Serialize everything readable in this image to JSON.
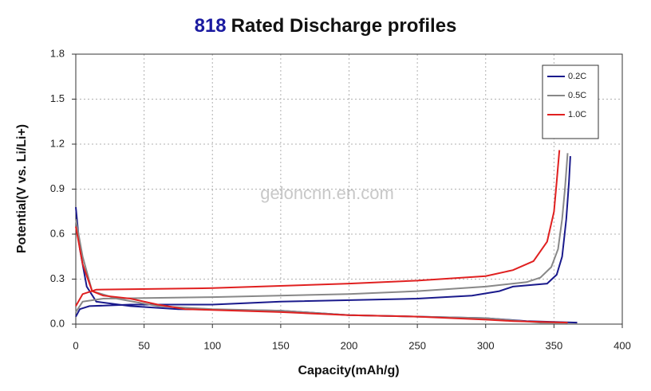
{
  "chart_data": {
    "type": "line",
    "title_prefix": "818",
    "title": "Rated Discharge profiles",
    "watermark": "geloncnn.en.com",
    "x_label": "Capacity(mAh/g)",
    "y_label": "Potential(V vs. Li/Li+)",
    "xlim": [
      0,
      400
    ],
    "xticks": [
      0,
      50,
      100,
      150,
      200,
      250,
      300,
      350,
      400
    ],
    "ylim": [
      0,
      1.8
    ],
    "yticks": [
      {
        "value": 0,
        "label": "0.0"
      },
      0.3,
      0.6,
      0.9,
      1.2,
      1.5,
      1.8
    ],
    "grid": true,
    "legend": "top-right",
    "series": [
      {
        "name": "0.2C",
        "color": "#1a1a8c",
        "x": [
          0,
          3,
          10,
          40,
          100,
          150,
          250,
          290,
          310,
          320,
          345,
          352,
          356,
          359,
          361,
          362,
          null,
          0,
          3,
          8,
          15,
          40,
          75,
          150,
          200,
          300,
          330,
          367
        ],
        "values": [
          0.05,
          0.1,
          0.12,
          0.13,
          0.13,
          0.15,
          0.17,
          0.19,
          0.22,
          0.25,
          0.27,
          0.33,
          0.45,
          0.7,
          0.95,
          1.12,
          null,
          0.78,
          0.5,
          0.25,
          0.15,
          0.12,
          0.1,
          0.09,
          0.06,
          0.04,
          0.02,
          0.01
        ]
      },
      {
        "name": "0.5C",
        "color": "#888888",
        "x": [
          0,
          5,
          20,
          100,
          200,
          250,
          300,
          330,
          340,
          348,
          353,
          356,
          358,
          360,
          null,
          0,
          5,
          12,
          30,
          60,
          100,
          150,
          200,
          300,
          340,
          360
        ],
        "values": [
          0.08,
          0.15,
          0.17,
          0.18,
          0.2,
          0.22,
          0.25,
          0.28,
          0.31,
          0.38,
          0.5,
          0.7,
          0.9,
          1.14,
          null,
          0.7,
          0.45,
          0.22,
          0.17,
          0.12,
          0.1,
          0.09,
          0.06,
          0.04,
          0.01,
          0.01
        ]
      },
      {
        "name": "1.0C",
        "color": "#e02020",
        "x": [
          0,
          5,
          15,
          100,
          200,
          250,
          300,
          320,
          335,
          345,
          350,
          352,
          354,
          null,
          0,
          5,
          12,
          20,
          40,
          60,
          80,
          150,
          200,
          250,
          300,
          320,
          360
        ],
        "values": [
          0.12,
          0.2,
          0.23,
          0.24,
          0.27,
          0.29,
          0.32,
          0.36,
          0.42,
          0.55,
          0.75,
          0.95,
          1.16,
          null,
          0.65,
          0.4,
          0.22,
          0.19,
          0.17,
          0.13,
          0.1,
          0.08,
          0.06,
          0.05,
          0.03,
          0.02,
          0.01
        ]
      }
    ]
  }
}
